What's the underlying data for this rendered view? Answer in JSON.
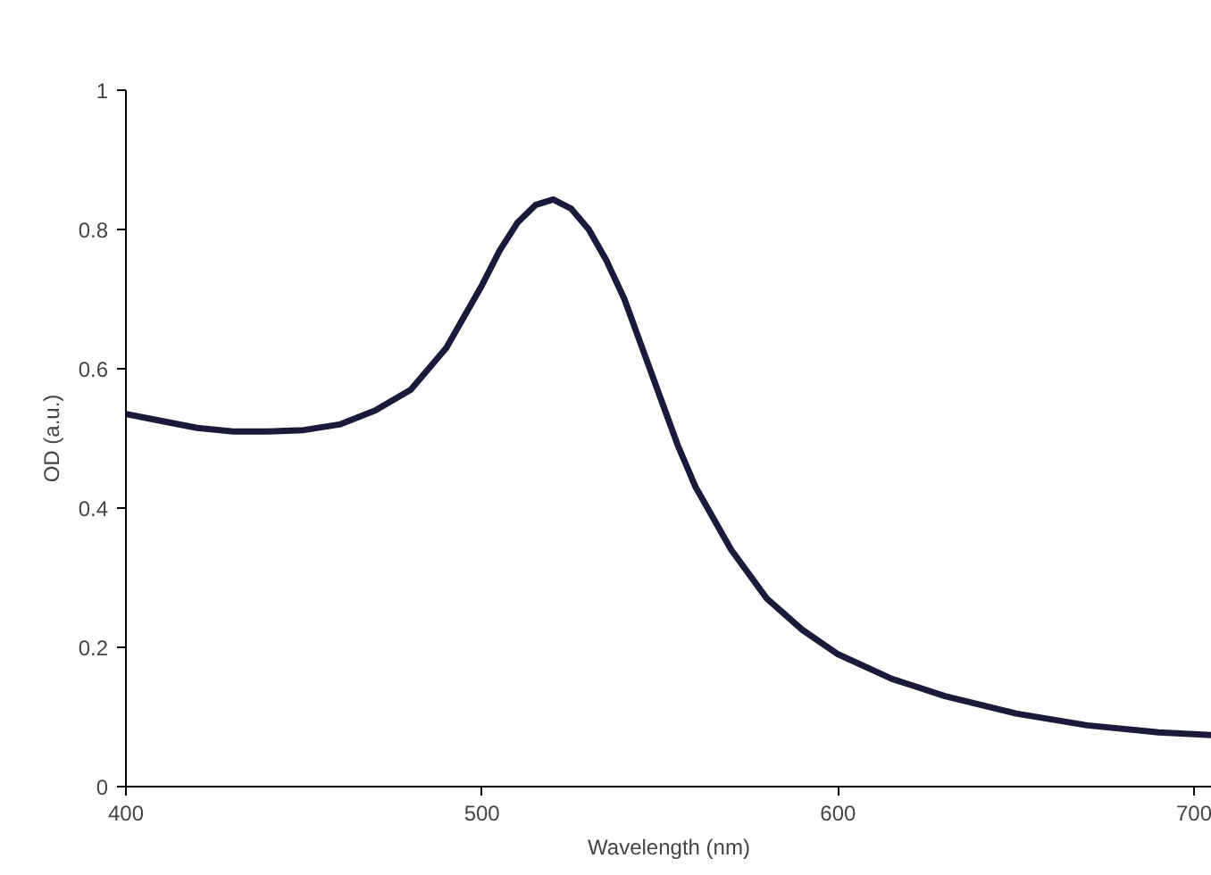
{
  "chart_data": {
    "type": "line",
    "xlabel": "Wavelength (nm)",
    "ylabel": "OD (a.u.)",
    "x": [
      400,
      410,
      420,
      430,
      440,
      450,
      460,
      470,
      480,
      490,
      500,
      505,
      510,
      515,
      520,
      525,
      530,
      535,
      540,
      545,
      550,
      555,
      560,
      570,
      580,
      590,
      600,
      615,
      630,
      650,
      670,
      690,
      705
    ],
    "series": [
      {
        "color": "#1c1a3a",
        "values": [
          0.535,
          0.525,
          0.515,
          0.51,
          0.51,
          0.512,
          0.52,
          0.54,
          0.57,
          0.63,
          0.72,
          0.77,
          0.81,
          0.835,
          0.843,
          0.83,
          0.8,
          0.755,
          0.7,
          0.63,
          0.56,
          0.49,
          0.43,
          0.34,
          0.27,
          0.225,
          0.19,
          0.155,
          0.13,
          0.105,
          0.088,
          0.078,
          0.074
        ]
      }
    ],
    "xlim": [
      400,
      705
    ],
    "ylim": [
      0,
      1
    ],
    "xticks": [
      400,
      500,
      600,
      700
    ],
    "yticks": [
      0,
      0.2,
      0.4,
      0.6,
      0.8,
      1
    ],
    "grid": false,
    "marker": "none",
    "line_style": "solid"
  }
}
